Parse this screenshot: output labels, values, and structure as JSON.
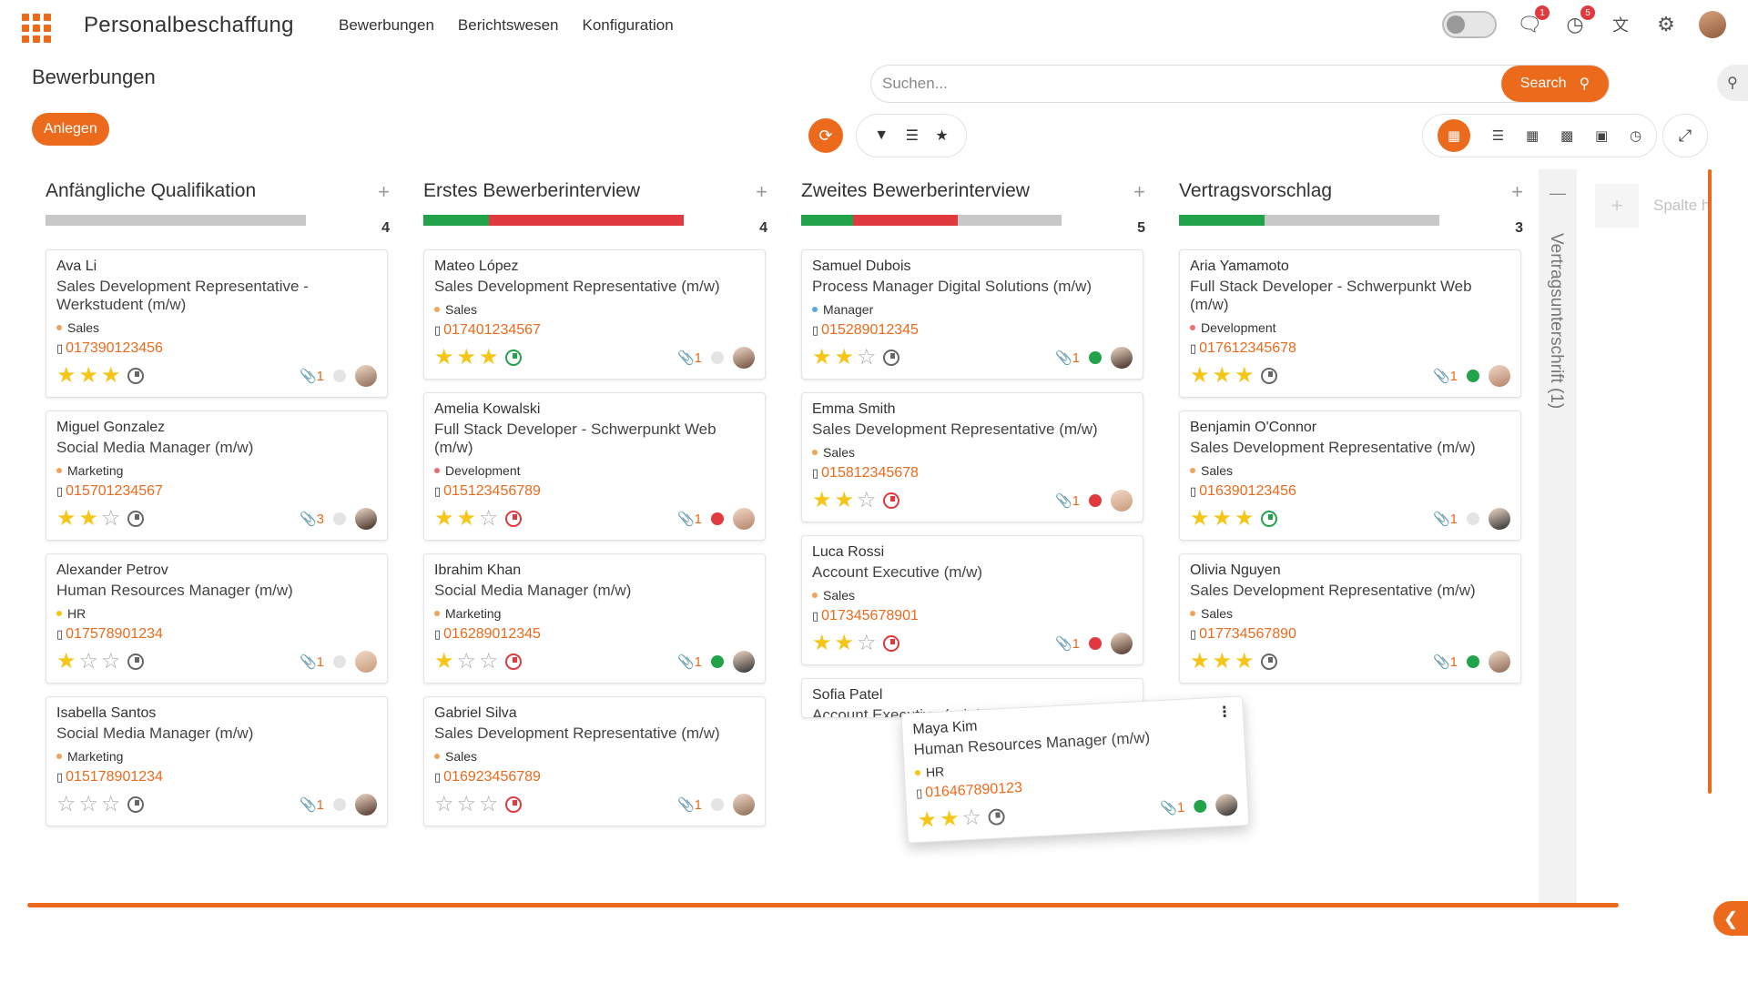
{
  "app": {
    "name": "Personalbeschaffung"
  },
  "nav": [
    {
      "label": "Bewerbungen"
    },
    {
      "label": "Berichtswesen"
    },
    {
      "label": "Konfiguration"
    }
  ],
  "tray": {
    "messages_badge": "1",
    "activities_badge": "5"
  },
  "page": {
    "title": "Bewerbungen",
    "create_label": "Anlegen"
  },
  "search": {
    "placeholder": "Suchen...",
    "button_label": "Search"
  },
  "colors": {
    "accent": "#ec6a1c",
    "green": "#22a34a",
    "red": "#e0393e",
    "grey": "#c8c8c8"
  },
  "icons": {
    "apps": "grid-icon",
    "messages": "chat-icon",
    "activities": "clock-icon",
    "translate": "translate-icon",
    "settings": "gear-icon",
    "refresh": "refresh-icon",
    "filter": "filter-icon",
    "group": "list-icon",
    "favorite": "star-icon",
    "kanban": "kanban-icon",
    "list": "list-view-icon",
    "pivot": "table-icon",
    "graph": "bar-chart-icon",
    "calendar": "calendar-icon",
    "activity": "activity-icon",
    "expand": "expand-icon"
  },
  "columns": [
    {
      "name": "Anfängliche Qualifikation",
      "count": "4",
      "progress": [
        {
          "color": "#c8c8c8",
          "fraction": 1
        }
      ],
      "cards": [
        {
          "name": "Ava Li",
          "job": "Sales Development Representative - Werkstudent (m/w)",
          "tag": "Sales",
          "tag_color": "#f0a35b",
          "phone": "017390123456",
          "stars": 3,
          "clock": "grey",
          "attachments": "1",
          "status": "none"
        },
        {
          "name": "Miguel Gonzalez",
          "job": "Social Media Manager (m/w)",
          "tag": "Marketing",
          "tag_color": "#f0a35b",
          "phone": "015701234567",
          "stars": 2,
          "clock": "grey",
          "attachments": "3",
          "status": "none"
        },
        {
          "name": "Alexander Petrov",
          "job": "Human Resources Manager (m/w)",
          "tag": "HR",
          "tag_color": "#f5c518",
          "phone": "017578901234",
          "stars": 1,
          "clock": "grey",
          "attachments": "1",
          "status": "none"
        },
        {
          "name": "Isabella Santos",
          "job": "Social Media Manager (m/w)",
          "tag": "Marketing",
          "tag_color": "#f0a35b",
          "phone": "015178901234",
          "stars": 0,
          "clock": "grey",
          "attachments": "1",
          "status": "none"
        }
      ]
    },
    {
      "name": "Erstes Bewerberinterview",
      "count": "4",
      "progress": [
        {
          "color": "#22a34a",
          "fraction": 0.25
        },
        {
          "color": "#e0393e",
          "fraction": 0.75
        }
      ],
      "cards": [
        {
          "name": "Mateo López",
          "job": "Sales Development Representative (m/w)",
          "tag": "Sales",
          "tag_color": "#f0a35b",
          "phone": "017401234567",
          "stars": 3,
          "clock": "green",
          "attachments": "1",
          "status": "none"
        },
        {
          "name": "Amelia Kowalski",
          "job": "Full Stack Developer - Schwerpunkt Web (m/w)",
          "tag": "Development",
          "tag_color": "#e76f6f",
          "phone": "015123456789",
          "stars": 2,
          "clock": "red",
          "attachments": "1",
          "status": "red"
        },
        {
          "name": "Ibrahim Khan",
          "job": "Social Media Manager (m/w)",
          "tag": "Marketing",
          "tag_color": "#f0a35b",
          "phone": "016289012345",
          "stars": 1,
          "clock": "red",
          "attachments": "1",
          "status": "green"
        },
        {
          "name": "Gabriel Silva",
          "job": "Sales Development Representative (m/w)",
          "tag": "Sales",
          "tag_color": "#f0a35b",
          "phone": "016923456789",
          "stars": 0,
          "clock": "red",
          "attachments": "1",
          "status": "none"
        }
      ]
    },
    {
      "name": "Zweites Bewerberinterview",
      "count": "5",
      "progress": [
        {
          "color": "#22a34a",
          "fraction": 0.2
        },
        {
          "color": "#e0393e",
          "fraction": 0.4
        },
        {
          "color": "#c8c8c8",
          "fraction": 0.4
        }
      ],
      "cards": [
        {
          "name": "Samuel Dubois",
          "job": "Process Manager Digital Solutions (m/w)",
          "tag": "Manager",
          "tag_color": "#5aa9e6",
          "phone": "015289012345",
          "stars": 2,
          "clock": "grey",
          "attachments": "1",
          "status": "green"
        },
        {
          "name": "Emma Smith",
          "job": "Sales Development Representative (m/w)",
          "tag": "Sales",
          "tag_color": "#f0a35b",
          "phone": "015812345678",
          "stars": 2,
          "clock": "red",
          "attachments": "1",
          "status": "red"
        },
        {
          "name": "Luca Rossi",
          "job": "Account Executive (m/w)",
          "tag": "Sales",
          "tag_color": "#f0a35b",
          "phone": "017345678901",
          "stars": 2,
          "clock": "red",
          "attachments": "1",
          "status": "red"
        },
        {
          "name": "Sofia Patel",
          "job": "Account Executive (m/w)",
          "tag": "",
          "tag_color": "#f0a35b",
          "phone": "",
          "stars": 0,
          "clock": "grey",
          "attachments": "",
          "status": "none"
        }
      ]
    },
    {
      "name": "Vertragsvorschlag",
      "count": "3",
      "progress": [
        {
          "color": "#22a34a",
          "fraction": 0.33
        },
        {
          "color": "#c8c8c8",
          "fraction": 0.67
        }
      ],
      "cards": [
        {
          "name": "Aria Yamamoto",
          "job": "Full Stack Developer - Schwerpunkt Web (m/w)",
          "tag": "Development",
          "tag_color": "#e76f6f",
          "phone": "017612345678",
          "stars": 3,
          "clock": "grey",
          "attachments": "1",
          "status": "green"
        },
        {
          "name": "Benjamin O'Connor",
          "job": "Sales Development Representative (m/w)",
          "tag": "Sales",
          "tag_color": "#f0a35b",
          "phone": "016390123456",
          "stars": 3,
          "clock": "green",
          "attachments": "1",
          "status": "none"
        },
        {
          "name": "Olivia Nguyen",
          "job": "Sales Development Representative (m/w)",
          "tag": "Sales",
          "tag_color": "#f0a35b",
          "phone": "017734567890",
          "stars": 3,
          "clock": "grey",
          "attachments": "1",
          "status": "green"
        }
      ]
    }
  ],
  "folded_column": {
    "label": "Vertragsunterschrift (1)"
  },
  "add_column": {
    "label": "Spalte h"
  },
  "dragged_card": {
    "name": "Maya Kim",
    "job": "Human Resources Manager (m/w)",
    "tag": "HR",
    "tag_color": "#f5c518",
    "phone": "016467890123",
    "stars": 2,
    "clock": "grey",
    "attachments": "1",
    "status": "green"
  }
}
